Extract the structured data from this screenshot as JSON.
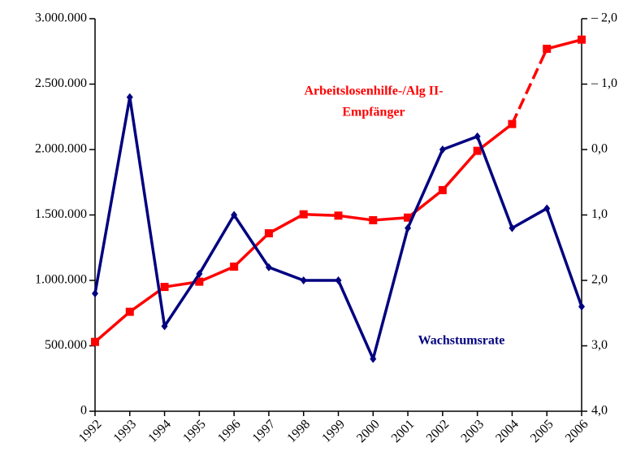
{
  "chart_data": {
    "type": "line",
    "categories": [
      "1992",
      "1993",
      "1994",
      "1995",
      "1996",
      "1997",
      "1998",
      "1999",
      "2000",
      "2001",
      "2002",
      "2003",
      "2004",
      "2005",
      "2006"
    ],
    "series": [
      {
        "color": "#ff0000",
        "marker": "square",
        "dashed_segments": [
          12
        ],
        "values": [
          530000,
          760000,
          950000,
          990000,
          1105000,
          1360000,
          1505000,
          1495000,
          1460000,
          1480000,
          1690000,
          1990000,
          2195000,
          2770000,
          2840000
        ]
      },
      {
        "color": "#000080",
        "marker": "diamond",
        "axis": "y2",
        "values": [
          2.2,
          -0.8,
          2.7,
          1.9,
          1.0,
          1.8,
          2.0,
          2.0,
          3.2,
          1.2,
          0.0,
          -0.2,
          1.2,
          0.9,
          2.4
        ]
      }
    ],
    "ylim": [
      0,
      3000000
    ],
    "yticks": [
      0,
      {
        "value": 500000,
        "label": "500.000"
      },
      {
        "value": 1000000,
        "label": "1.000.000"
      },
      {
        "value": 1500000,
        "label": "1.500.000"
      },
      {
        "value": 2000000,
        "label": "2.000.000"
      },
      {
        "value": 2500000,
        "label": "2.500.000"
      },
      {
        "value": 3000000,
        "label": "3.000.000"
      }
    ],
    "y2lim": [
      -2,
      4
    ],
    "y2_inverted": true,
    "y2ticks": [
      {
        "value": -2,
        "label": "– 2,0"
      },
      {
        "value": -1,
        "label": "– 1,0"
      },
      {
        "value": 0,
        "label": "0,0"
      },
      {
        "value": 1,
        "label": "1,0"
      },
      {
        "value": 2,
        "label": "2,0"
      },
      {
        "value": 3,
        "label": "3,0"
      },
      {
        "value": 4,
        "label": "4,0"
      }
    ],
    "annotations": [
      {
        "lines": [
          "Arbeitslosenhilfe-/Alg II-",
          "Empfänger"
        ],
        "color": "#ff0000"
      },
      {
        "lines": [
          "Wachstumsrate"
        ],
        "color": "#000080"
      }
    ]
  }
}
